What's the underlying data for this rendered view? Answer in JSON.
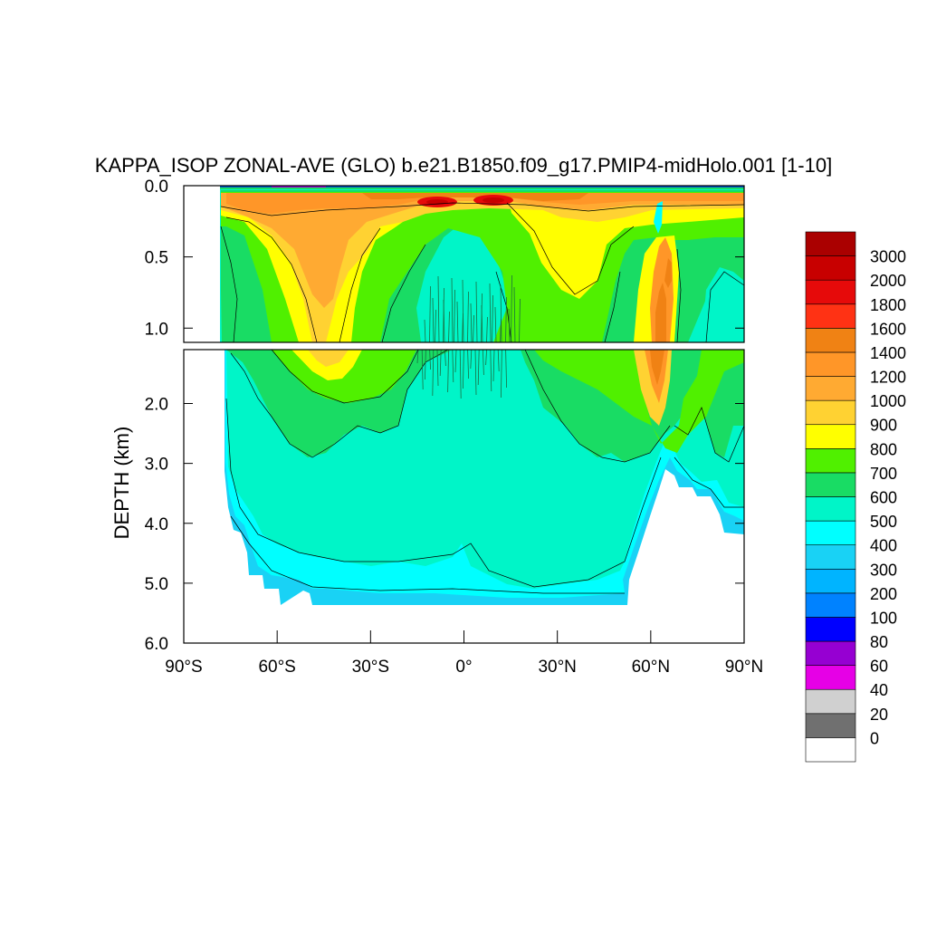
{
  "chart_data": {
    "type": "heatmap",
    "title": "KAPPA_ISOP ZONAL-AVE (GLO) b.e21.B1850.f09_g17.PMIP4-midHolo.001 [1-10]",
    "xlabel": "",
    "ylabel": "DEPTH (km)",
    "x_range": [
      -90,
      90
    ],
    "y_range_upper_km": [
      0.0,
      1.1
    ],
    "y_range_lower_km": [
      1.1,
      6.0
    ],
    "x_ticks": [
      {
        "value": -90,
        "label": "90°S"
      },
      {
        "value": -60,
        "label": "60°S"
      },
      {
        "value": -30,
        "label": "30°S"
      },
      {
        "value": 0,
        "label": "0°"
      },
      {
        "value": 30,
        "label": "30°N"
      },
      {
        "value": 60,
        "label": "60°N"
      },
      {
        "value": 90,
        "label": "90°N"
      }
    ],
    "y_ticks_upper": [
      {
        "value": 0.0,
        "label": "0.0"
      },
      {
        "value": 0.5,
        "label": "0.5"
      },
      {
        "value": 1.0,
        "label": "1.0"
      }
    ],
    "y_ticks_lower": [
      {
        "value": 2.0,
        "label": "2.0"
      },
      {
        "value": 3.0,
        "label": "3.0"
      },
      {
        "value": 4.0,
        "label": "4.0"
      },
      {
        "value": 5.0,
        "label": "5.0"
      },
      {
        "value": 6.0,
        "label": "6.0"
      }
    ],
    "colorbar": {
      "colors": [
        "#ffffff",
        "#707070",
        "#d0d0d0",
        "#e600e6",
        "#9600d2",
        "#0000ff",
        "#0082ff",
        "#00b4ff",
        "#19d2f5",
        "#00ffff",
        "#00f5c8",
        "#19dc64",
        "#50f000",
        "#ffff00",
        "#ffd232",
        "#ffaa32",
        "#ff9628",
        "#f08214",
        "#ff3214",
        "#e60a0a",
        "#c80000",
        "#aa0000"
      ],
      "labels": [
        "0",
        "20",
        "40",
        "60",
        "80",
        "100",
        "200",
        "300",
        "400",
        "500",
        "600",
        "700",
        "800",
        "900",
        "1000",
        "1200",
        "1400",
        "1600",
        "1800",
        "2000",
        "3000"
      ]
    }
  }
}
